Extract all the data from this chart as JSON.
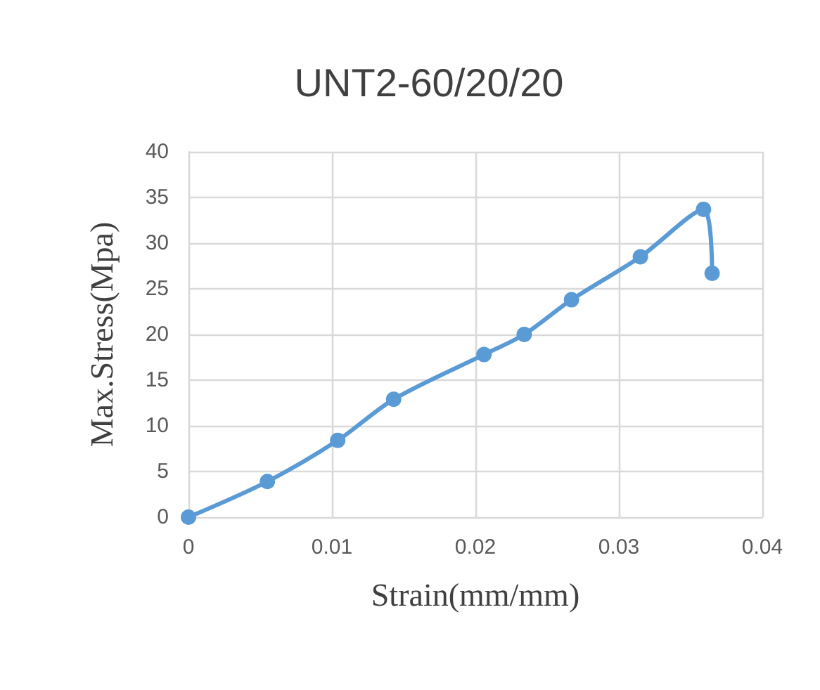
{
  "chart_data": {
    "type": "line",
    "title": "UNT2-60/20/20",
    "xlabel": "Strain(mm/mm)",
    "ylabel": "Max.Stress(Mpa)",
    "series": [
      {
        "color": "#5b9bd5",
        "x": [
          0,
          0.0055,
          0.0104,
          0.0143,
          0.0206,
          0.0234,
          0.0267,
          0.0315,
          0.0359,
          0.0365
        ],
        "values": [
          0,
          3.9,
          8.4,
          12.9,
          17.8,
          20.0,
          23.8,
          28.5,
          33.7,
          26.7
        ]
      }
    ],
    "xlim": [
      0,
      0.04
    ],
    "xticks": [
      0,
      0.01,
      0.02,
      0.03,
      0.04
    ],
    "ylim": [
      0,
      40
    ],
    "yticks": [
      0,
      5,
      10,
      15,
      20,
      25,
      30,
      35,
      40
    ],
    "grid": true,
    "marker": "circle",
    "line_style": "solid"
  }
}
